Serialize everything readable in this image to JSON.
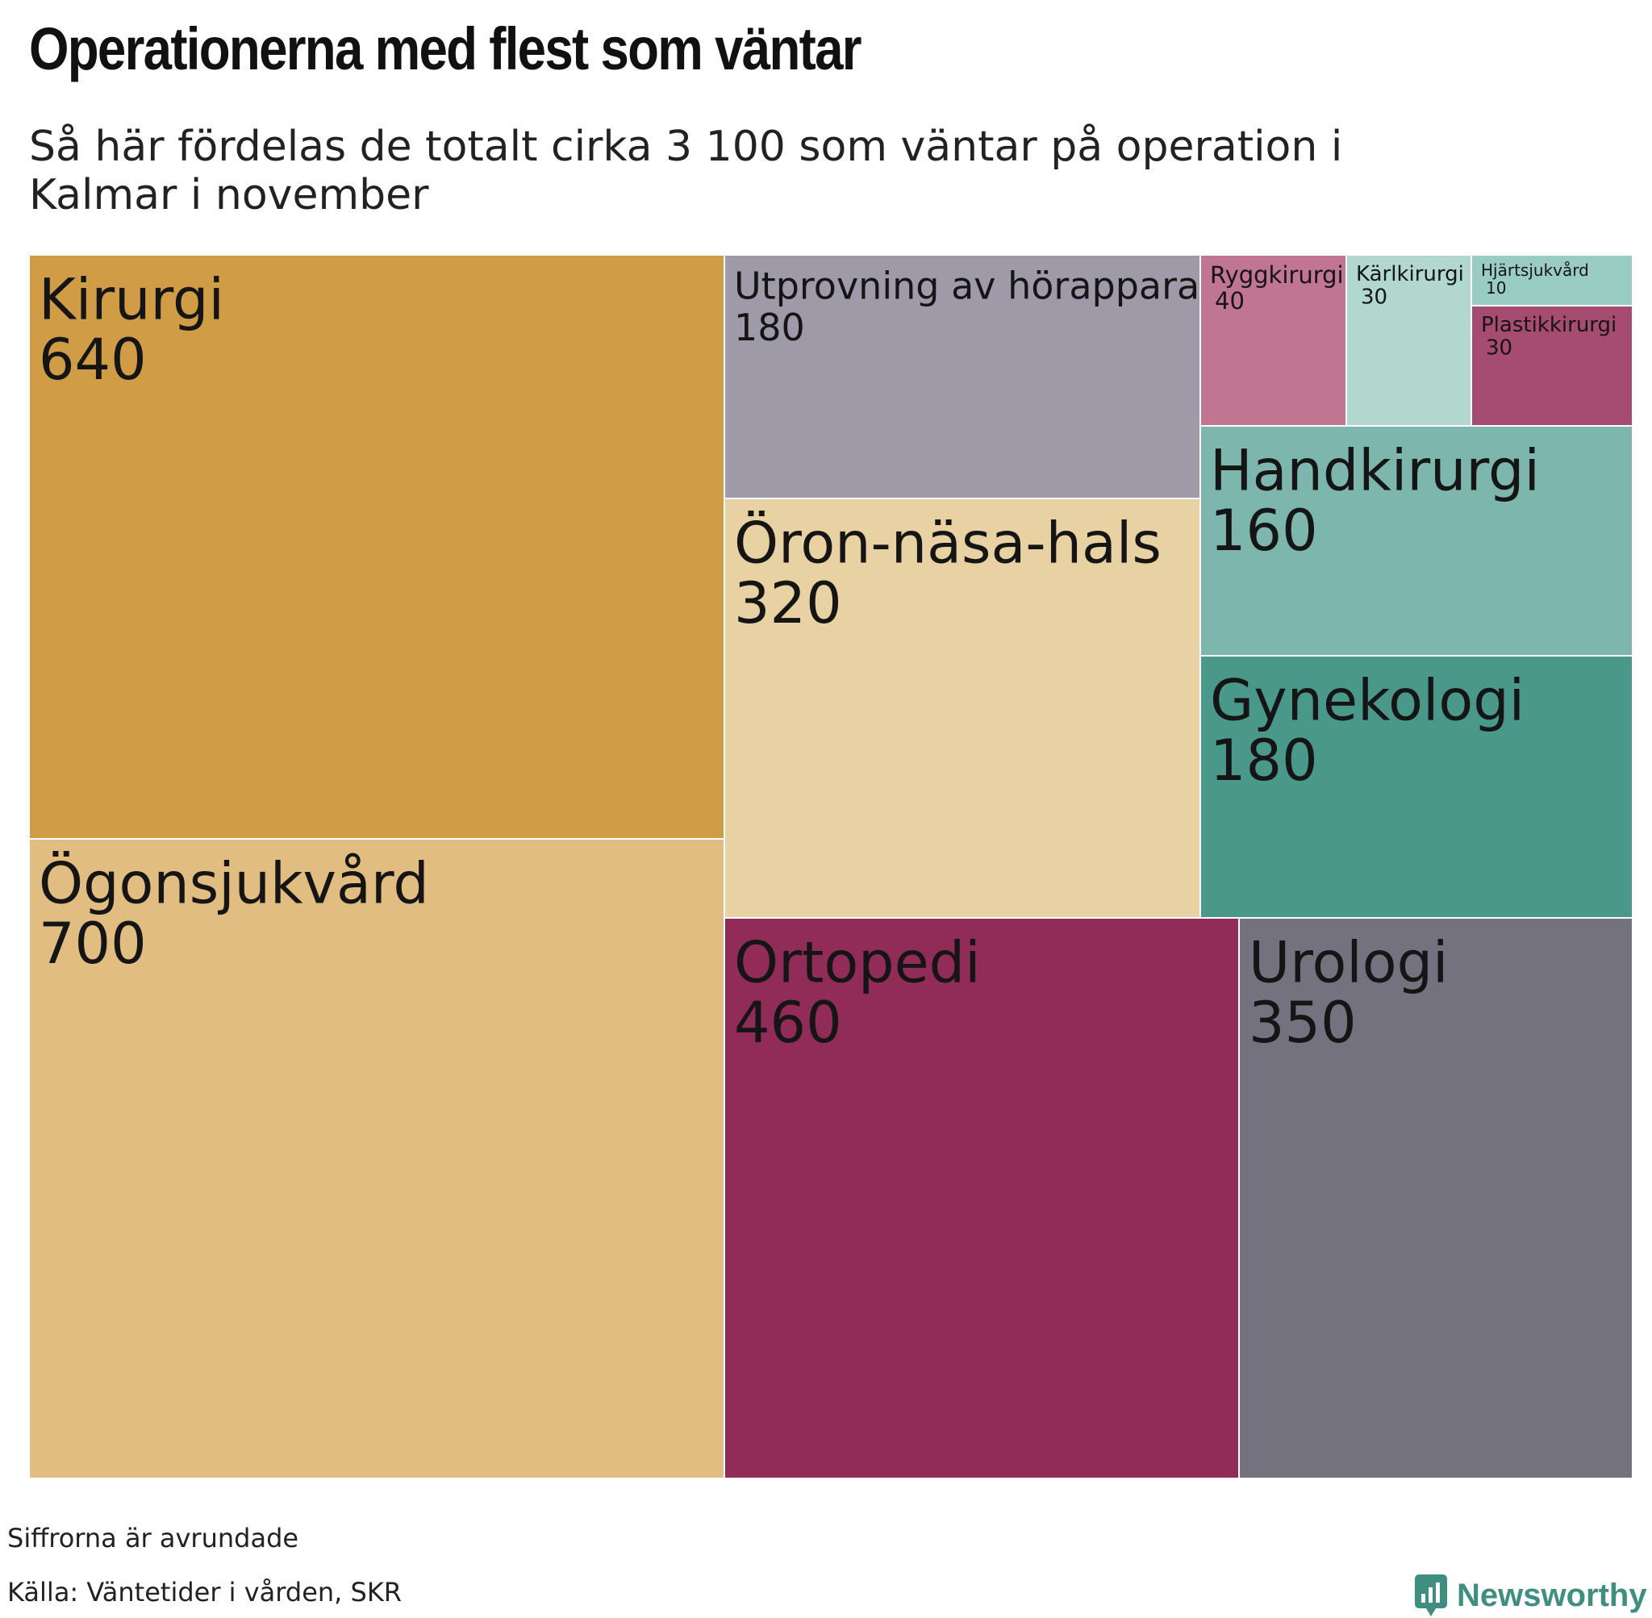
{
  "title": "Operationerna med flest som väntar",
  "subtitle": "Så här fördelas de totalt cirka 3 100 som väntar på operation i Kalmar i november",
  "footer": {
    "note": "Siffrorna är avrundade",
    "source": "Källa: Väntetider i vården, SKR",
    "brand": "Newsworthy"
  },
  "colors": {
    "brand": "#3f8f80"
  },
  "chart_data": {
    "type": "treemap",
    "total_label": "cirka 3 100",
    "items": [
      {
        "name": "Kirurgi",
        "value": 640,
        "color": "#d09c45"
      },
      {
        "name": "Ögonsjukvård",
        "value": 700,
        "color": "#e1bd81"
      },
      {
        "name": "Utprovning av hörapparat",
        "value": 180,
        "color": "#9e9aa8"
      },
      {
        "name": "Öron-näsa-hals",
        "value": 320,
        "color": "#e8d1a2"
      },
      {
        "name": "Ryggkirurgi",
        "value": 40,
        "color": "#c07590"
      },
      {
        "name": "Kärlkirurgi",
        "value": 30,
        "color": "#b2d7cf"
      },
      {
        "name": "Hjärtsjukvård",
        "value": 10,
        "color": "#99ccc3"
      },
      {
        "name": "Plastikkirurgi",
        "value": 30,
        "color": "#a54c70"
      },
      {
        "name": "Handkirurgi",
        "value": 160,
        "color": "#7db6ac"
      },
      {
        "name": "Gynekologi",
        "value": 180,
        "color": "#4a988a"
      },
      {
        "name": "Ortopedi",
        "value": 460,
        "color": "#912b57"
      },
      {
        "name": "Urologi",
        "value": 350,
        "color": "#74727f"
      }
    ]
  }
}
